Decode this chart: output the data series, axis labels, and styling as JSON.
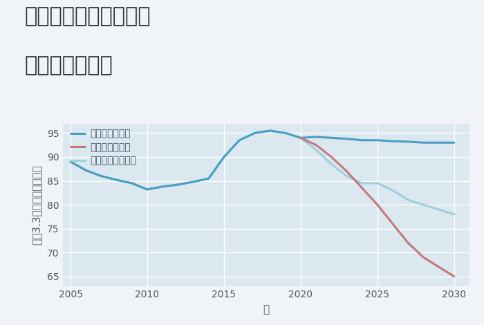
{
  "title_line1": "兵庫県西宮市池田町の",
  "title_line2": "土地の価格推移",
  "xlabel": "年",
  "ylabel": "平（3.3㎡）単価（万円）",
  "background_color": "#f0f4f8",
  "plot_bg_color": "#dce8f0",
  "good_scenario": {
    "label": "グッドシナリオ",
    "color": "#4a9fc0",
    "years": [
      2005,
      2006,
      2007,
      2008,
      2009,
      2010,
      2011,
      2012,
      2013,
      2014,
      2015,
      2016,
      2017,
      2018,
      2019,
      2020,
      2021,
      2022,
      2023,
      2024,
      2025,
      2026,
      2027,
      2028,
      2029,
      2030
    ],
    "values": [
      89,
      87.2,
      86,
      85.2,
      84.5,
      83.2,
      83.8,
      84.2,
      84.8,
      85.5,
      90,
      93.5,
      95,
      95.5,
      95,
      94,
      94.2,
      94,
      93.8,
      93.5,
      93.5,
      93.3,
      93.2,
      93,
      93,
      93
    ]
  },
  "bad_scenario": {
    "label": "バッドシナリオ",
    "color": "#c47878",
    "years": [
      2020,
      2021,
      2022,
      2023,
      2024,
      2025,
      2026,
      2027,
      2028,
      2029,
      2030
    ],
    "values": [
      94,
      92.5,
      90,
      87,
      83.5,
      80,
      76,
      72,
      69,
      67,
      65
    ]
  },
  "normal_scenario": {
    "label": "ノーマルシナリオ",
    "color": "#9ecfe0",
    "years": [
      2005,
      2006,
      2007,
      2008,
      2009,
      2010,
      2011,
      2012,
      2013,
      2014,
      2015,
      2016,
      2017,
      2018,
      2019,
      2020,
      2021,
      2022,
      2023,
      2024,
      2025,
      2026,
      2027,
      2028,
      2029,
      2030
    ],
    "values": [
      89,
      87.2,
      86,
      85.2,
      84.5,
      83.2,
      83.8,
      84.2,
      84.8,
      85.5,
      90,
      93.5,
      95,
      95.5,
      95,
      94,
      91.5,
      88.5,
      86,
      84.5,
      84.5,
      83,
      81,
      80,
      79,
      78
    ]
  },
  "ylim": [
    63,
    97
  ],
  "yticks": [
    65,
    70,
    75,
    80,
    85,
    90,
    95
  ],
  "xlim": [
    2004.5,
    2031
  ],
  "xticks": [
    2005,
    2010,
    2015,
    2020,
    2025,
    2030
  ],
  "linewidth": 2.2,
  "title_fontsize": 22,
  "axis_label_fontsize": 11,
  "tick_fontsize": 10,
  "legend_fontsize": 10
}
